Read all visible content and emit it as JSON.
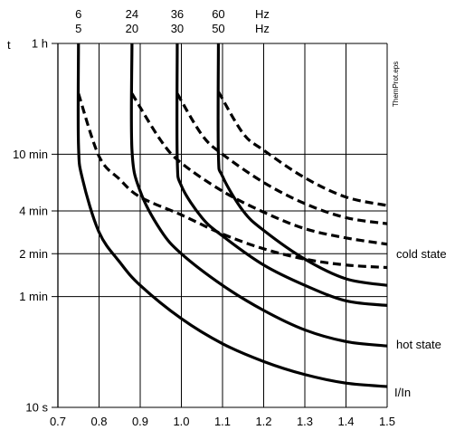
{
  "chart_data": {
    "type": "line",
    "title": "",
    "xlabel": "I/In",
    "ylabel": "t",
    "xlim": [
      0.7,
      1.5
    ],
    "y_scale": "log",
    "ylim_seconds": [
      10,
      3600
    ],
    "grid": true,
    "x_ticks": [
      "0.7",
      "0.8",
      "0.9",
      "1.0",
      "1.1",
      "1.2",
      "1.3",
      "1.4",
      "1.5"
    ],
    "y_ticks": [
      {
        "label": "1 h",
        "seconds": 3600
      },
      {
        "label": "10 min",
        "seconds": 600
      },
      {
        "label": "4 min",
        "seconds": 240
      },
      {
        "label": "2 min",
        "seconds": 120
      },
      {
        "label": "1 min",
        "seconds": 60
      },
      {
        "label": "10 s",
        "seconds": 10
      }
    ],
    "frequency_labels": [
      {
        "x": 0.75,
        "top": "6",
        "bottom": "5"
      },
      {
        "x": 0.88,
        "top": "24",
        "bottom": "20"
      },
      {
        "x": 0.99,
        "top": "36",
        "bottom": "30"
      },
      {
        "x": 1.09,
        "top": "60",
        "bottom": "50"
      }
    ],
    "frequency_unit_top": "Hz",
    "frequency_unit_bottom": "Hz",
    "annotations": [
      "cold state",
      "hot state"
    ],
    "side_label": "ThemProt.eps",
    "series": [
      {
        "style": "solid",
        "points": [
          [
            0.75,
            3600
          ],
          [
            0.75,
            700
          ],
          [
            0.76,
            400
          ],
          [
            0.8,
            170
          ],
          [
            0.85,
            105
          ],
          [
            0.9,
            72
          ],
          [
            1.0,
            42
          ],
          [
            1.1,
            28
          ],
          [
            1.2,
            21
          ],
          [
            1.3,
            17
          ],
          [
            1.4,
            14.8
          ],
          [
            1.5,
            14
          ]
        ]
      },
      {
        "style": "solid",
        "points": [
          [
            0.88,
            3600
          ],
          [
            0.88,
            640
          ],
          [
            0.9,
            330
          ],
          [
            0.95,
            175
          ],
          [
            1.0,
            120
          ],
          [
            1.1,
            72
          ],
          [
            1.2,
            48
          ],
          [
            1.3,
            35
          ],
          [
            1.4,
            29
          ],
          [
            1.5,
            27
          ]
        ]
      },
      {
        "style": "solid",
        "points": [
          [
            0.99,
            3600
          ],
          [
            0.99,
            560
          ],
          [
            1.0,
            360
          ],
          [
            1.05,
            215
          ],
          [
            1.1,
            160
          ],
          [
            1.2,
            100
          ],
          [
            1.3,
            72
          ],
          [
            1.4,
            56
          ],
          [
            1.5,
            52
          ]
        ]
      },
      {
        "style": "solid",
        "points": [
          [
            1.09,
            3600
          ],
          [
            1.09,
            600
          ],
          [
            1.1,
            420
          ],
          [
            1.15,
            240
          ],
          [
            1.2,
            175
          ],
          [
            1.3,
            110
          ],
          [
            1.4,
            80
          ],
          [
            1.5,
            72
          ]
        ]
      },
      {
        "style": "dashed",
        "points": [
          [
            0.75,
            1600
          ],
          [
            0.8,
            580
          ],
          [
            0.85,
            400
          ],
          [
            0.9,
            300
          ],
          [
            1.0,
            225
          ],
          [
            1.1,
            165
          ],
          [
            1.2,
            130
          ],
          [
            1.3,
            110
          ],
          [
            1.4,
            100
          ],
          [
            1.5,
            96
          ]
        ]
      },
      {
        "style": "dashed",
        "points": [
          [
            0.88,
            1600
          ],
          [
            0.95,
            750
          ],
          [
            1.0,
            520
          ],
          [
            1.1,
            330
          ],
          [
            1.2,
            235
          ],
          [
            1.3,
            180
          ],
          [
            1.4,
            155
          ],
          [
            1.5,
            140
          ]
        ]
      },
      {
        "style": "dashed",
        "points": [
          [
            0.99,
            1600
          ],
          [
            1.05,
            820
          ],
          [
            1.1,
            600
          ],
          [
            1.2,
            380
          ],
          [
            1.3,
            270
          ],
          [
            1.4,
            215
          ],
          [
            1.5,
            195
          ]
        ]
      },
      {
        "style": "dashed",
        "points": [
          [
            1.09,
            1650
          ],
          [
            1.15,
            840
          ],
          [
            1.2,
            640
          ],
          [
            1.3,
            410
          ],
          [
            1.4,
            300
          ],
          [
            1.5,
            262
          ]
        ]
      }
    ]
  }
}
